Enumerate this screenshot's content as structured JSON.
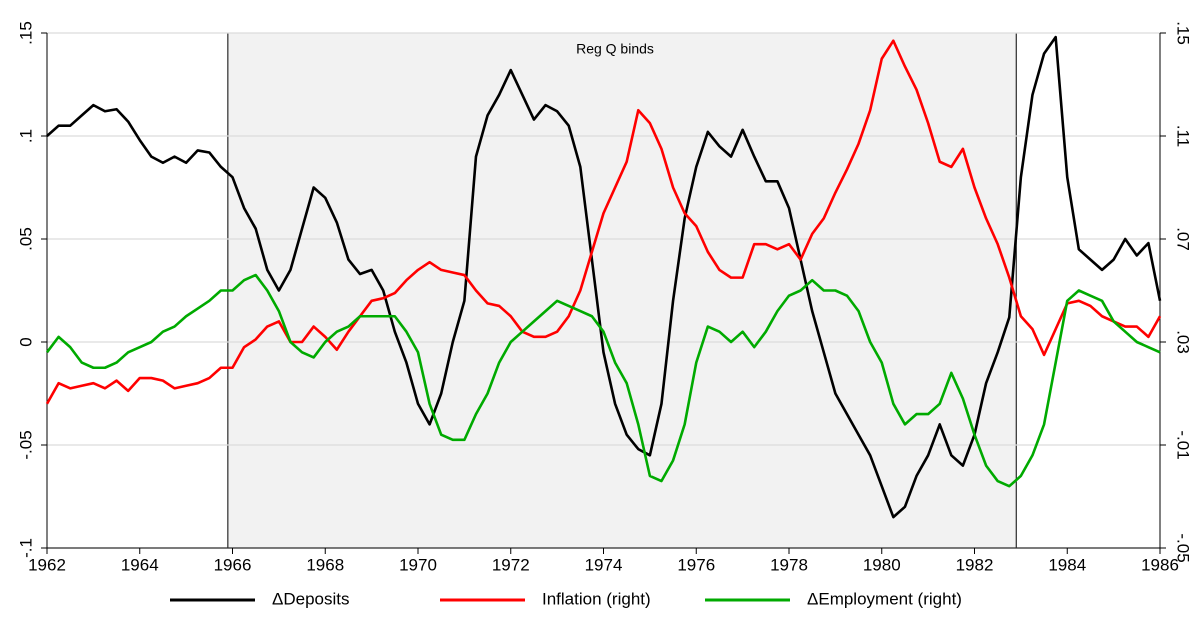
{
  "chart_data": {
    "type": "line",
    "annotation": "Reg Q binds",
    "shade": {
      "xlim": [
        1965.9,
        1982.9
      ],
      "color": "#f2f2f2"
    },
    "xlim": [
      1962,
      1986
    ],
    "xticks": [
      1962,
      1964,
      1966,
      1968,
      1970,
      1972,
      1974,
      1976,
      1978,
      1980,
      1982,
      1984,
      1986
    ],
    "ylim": [
      -0.1,
      0.15
    ],
    "yticks": [
      {
        "value": -0.1,
        "label": "-.1"
      },
      {
        "value": -0.05,
        "label": "-.05"
      },
      0,
      {
        "value": 0.05,
        "label": ".05"
      },
      {
        "value": 0.1,
        "label": ".1"
      },
      {
        "value": 0.15,
        "label": ".15"
      }
    ],
    "y2lim": [
      -0.05,
      0.15
    ],
    "y2ticks": [
      {
        "value": -0.05,
        "label": "-.05"
      },
      {
        "value": -0.01,
        "label": "-.01"
      },
      {
        "value": 0.03,
        "label": ".03"
      },
      {
        "value": 0.07,
        "label": ".07"
      },
      {
        "value": 0.11,
        "label": ".11"
      },
      {
        "value": 0.15,
        "label": ".15"
      }
    ],
    "grid": true,
    "legend": "bottom",
    "x": [
      1962,
      1962.25,
      1962.5,
      1962.75,
      1963,
      1963.25,
      1963.5,
      1963.75,
      1964,
      1964.25,
      1964.5,
      1964.75,
      1965,
      1965.25,
      1965.5,
      1965.75,
      1966,
      1966.25,
      1966.5,
      1966.75,
      1967,
      1967.25,
      1967.5,
      1967.75,
      1968,
      1968.25,
      1968.5,
      1968.75,
      1969,
      1969.25,
      1969.5,
      1969.75,
      1970,
      1970.25,
      1970.5,
      1970.75,
      1971,
      1971.25,
      1971.5,
      1971.75,
      1972,
      1972.25,
      1972.5,
      1972.75,
      1973,
      1973.25,
      1973.5,
      1973.75,
      1974,
      1974.25,
      1974.5,
      1974.75,
      1975,
      1975.25,
      1975.5,
      1975.75,
      1976,
      1976.25,
      1976.5,
      1976.75,
      1977,
      1977.25,
      1977.5,
      1977.75,
      1978,
      1978.25,
      1978.5,
      1978.75,
      1979,
      1979.25,
      1979.5,
      1979.75,
      1980,
      1980.25,
      1980.5,
      1980.75,
      1981,
      1981.25,
      1981.5,
      1981.75,
      1982,
      1982.25,
      1982.5,
      1982.75,
      1983,
      1983.25,
      1983.5,
      1983.75,
      1984,
      1984.25,
      1984.5,
      1984.75,
      1985,
      1985.25,
      1985.5,
      1985.75,
      1986
    ],
    "series": [
      {
        "name": "ΔDeposits",
        "color": "#000000",
        "values": [
          0.1,
          0.105,
          0.105,
          0.11,
          0.115,
          0.112,
          0.113,
          0.107,
          0.098,
          0.09,
          0.087,
          0.09,
          0.087,
          0.093,
          0.092,
          0.085,
          0.08,
          0.065,
          0.055,
          0.035,
          0.025,
          0.035,
          0.055,
          0.075,
          0.07,
          0.058,
          0.04,
          0.033,
          0.035,
          0.025,
          0.005,
          -0.01,
          -0.03,
          -0.04,
          -0.025,
          0,
          0.02,
          0.09,
          0.11,
          0.12,
          0.132,
          0.12,
          0.108,
          0.115,
          0.112,
          0.105,
          0.085,
          0.04,
          -0.005,
          -0.03,
          -0.045,
          -0.052,
          -0.055,
          -0.03,
          0.02,
          0.06,
          0.085,
          0.102,
          0.095,
          0.09,
          0.103,
          0.09,
          0.078,
          0.078,
          0.065,
          0.04,
          0.015,
          -0.005,
          -0.025,
          -0.035,
          -0.045,
          -0.055,
          -0.07,
          -0.085,
          -0.08,
          -0.065,
          -0.055,
          -0.04,
          -0.055,
          -0.06,
          -0.045,
          -0.02,
          -0.005,
          0.012,
          0.08,
          0.12,
          0.14,
          0.148,
          0.08,
          0.045,
          0.04,
          0.035,
          0.04,
          0.05,
          0.042,
          0.048,
          0.02
        ]
      },
      {
        "name": "Inflation (right)",
        "color": "#ff0000",
        "axis": "y2",
        "values": [
          0.006,
          0.014,
          0.012,
          0.013,
          0.014,
          0.012,
          0.015,
          0.011,
          0.016,
          0.016,
          0.015,
          0.012,
          0.013,
          0.014,
          0.016,
          0.02,
          0.02,
          0.028,
          0.031,
          0.036,
          0.038,
          0.03,
          0.03,
          0.036,
          0.032,
          0.027,
          0.034,
          0.04,
          0.046,
          0.047,
          0.049,
          0.054,
          0.058,
          0.061,
          0.058,
          0.057,
          0.056,
          0.05,
          0.045,
          0.044,
          0.04,
          0.034,
          0.032,
          0.032,
          0.034,
          0.04,
          0.05,
          0.065,
          0.08,
          0.09,
          0.1,
          0.12,
          0.115,
          0.105,
          0.09,
          0.08,
          0.075,
          0.065,
          0.058,
          0.055,
          0.055,
          0.068,
          0.068,
          0.066,
          0.068,
          0.062,
          0.072,
          0.078,
          0.088,
          0.097,
          0.107,
          0.12,
          0.14,
          0.147,
          0.137,
          0.128,
          0.115,
          0.1,
          0.098,
          0.105,
          0.09,
          0.078,
          0.068,
          0.055,
          0.04,
          0.035,
          0.025,
          0.035,
          0.045,
          0.046,
          0.044,
          0.04,
          0.038,
          0.036,
          0.036,
          0.032,
          0.04
        ]
      },
      {
        "name": "ΔEmployment (right)",
        "color": "#00aa00",
        "axis": "y2",
        "values": [
          0.026,
          0.032,
          0.028,
          0.022,
          0.02,
          0.02,
          0.022,
          0.026,
          0.028,
          0.03,
          0.034,
          0.036,
          0.04,
          0.043,
          0.046,
          0.05,
          0.05,
          0.054,
          0.056,
          0.05,
          0.042,
          0.03,
          0.026,
          0.024,
          0.03,
          0.034,
          0.036,
          0.04,
          0.04,
          0.04,
          0.04,
          0.034,
          0.026,
          0.006,
          -0.006,
          -0.008,
          -0.008,
          0.002,
          0.01,
          0.022,
          0.03,
          0.034,
          0.038,
          0.042,
          0.046,
          0.044,
          0.042,
          0.04,
          0.034,
          0.022,
          0.014,
          -0.002,
          -0.022,
          -0.024,
          -0.016,
          -0.002,
          0.022,
          0.036,
          0.034,
          0.03,
          0.034,
          0.028,
          0.034,
          0.042,
          0.048,
          0.05,
          0.054,
          0.05,
          0.05,
          0.048,
          0.042,
          0.03,
          0.022,
          0.006,
          -0.002,
          0.002,
          0.002,
          0.006,
          0.018,
          0.008,
          -0.006,
          -0.018,
          -0.024,
          -0.026,
          -0.022,
          -0.014,
          -0.002,
          0.022,
          0.046,
          0.05,
          0.048,
          0.046,
          0.038,
          0.034,
          0.03,
          0.028,
          0.026
        ]
      }
    ]
  }
}
